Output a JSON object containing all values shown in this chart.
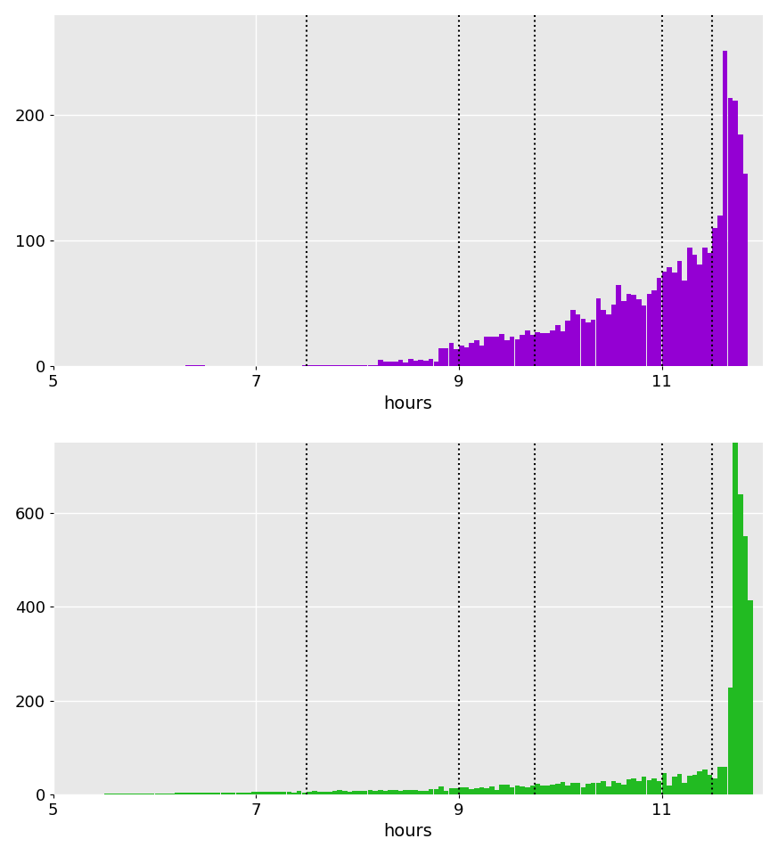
{
  "female_color": "#9400D3",
  "male_color": "#22BB22",
  "background_color": "#E8E8E8",
  "dotted_lines": [
    7.5,
    9.0,
    9.75,
    11.0,
    11.5
  ],
  "x_min": 5.0,
  "x_max": 12.0,
  "x_ticks": [
    5,
    7,
    9,
    11
  ],
  "xlabel": "hours",
  "female_ylim": [
    0,
    280
  ],
  "male_ylim": [
    0,
    750
  ],
  "female_yticks": [
    0,
    100,
    200
  ],
  "male_yticks": [
    0,
    200,
    400,
    600
  ],
  "bin_width": 0.05,
  "female_total": 3500,
  "male_total": 12000
}
